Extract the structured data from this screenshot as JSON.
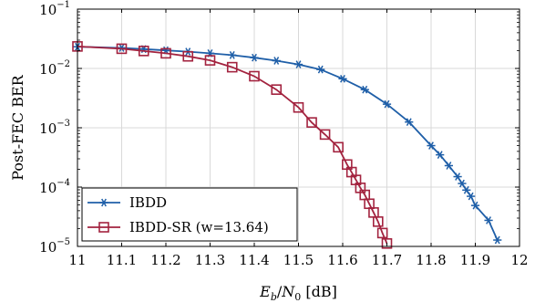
{
  "chart_data": {
    "type": "line",
    "title": "",
    "xlabel": "E_b/N_0 [dB]",
    "xlabel_parts": {
      "e": "E",
      "b": "b",
      "slash": "/",
      "n": "N",
      "zero": "0",
      "unit": " [dB]"
    },
    "ylabel": "Post-FEC BER",
    "xlim": [
      11,
      12
    ],
    "ylim": [
      1e-05,
      0.1
    ],
    "yscale": "log",
    "grid": true,
    "legend_position": "bottom-left",
    "x_ticks": [
      11,
      11.1,
      11.2,
      11.3,
      11.4,
      11.5,
      11.6,
      11.7,
      11.8,
      11.9,
      12
    ],
    "x_tick_labels": [
      "11",
      "11.1",
      "11.2",
      "11.3",
      "11.4",
      "11.5",
      "11.6",
      "11.7",
      "11.8",
      "11.9",
      "12"
    ],
    "y_ticks": [
      1e-05,
      0.0001,
      0.001,
      0.01,
      0.1
    ],
    "y_tick_bases": [
      "10",
      "10",
      "10",
      "10",
      "10"
    ],
    "y_tick_exponents": [
      "−5",
      "−4",
      "−3",
      "−2",
      "−1"
    ],
    "series": [
      {
        "name": "IBDD",
        "color": "#1f5fa8",
        "marker": "asterisk",
        "x": [
          11.0,
          11.1,
          11.15,
          11.2,
          11.25,
          11.3,
          11.35,
          11.4,
          11.45,
          11.5,
          11.55,
          11.6,
          11.65,
          11.7,
          11.75,
          11.8,
          11.82,
          11.84,
          11.86,
          11.87,
          11.88,
          11.89,
          11.9,
          11.93,
          11.95
        ],
        "y": [
          0.0232,
          0.0222,
          0.0212,
          0.0202,
          0.0192,
          0.018,
          0.0168,
          0.0152,
          0.0135,
          0.0117,
          0.0096,
          0.0067,
          0.0044,
          0.0025,
          0.00125,
          0.0005,
          0.00035,
          0.00023,
          0.00015,
          0.000115,
          8.9e-05,
          7e-05,
          4.9e-05,
          2.75e-05,
          1.28e-05
        ]
      },
      {
        "name": "IBDD-SR (w=13.64)",
        "color": "#a3233f",
        "marker": "square",
        "x": [
          11.0,
          11.1,
          11.15,
          11.2,
          11.25,
          11.3,
          11.35,
          11.4,
          11.45,
          11.5,
          11.53,
          11.56,
          11.59,
          11.61,
          11.62,
          11.63,
          11.64,
          11.65,
          11.66,
          11.67,
          11.68,
          11.69,
          11.7
        ],
        "y": [
          0.0235,
          0.0215,
          0.0197,
          0.018,
          0.016,
          0.0137,
          0.0105,
          0.0074,
          0.0044,
          0.0022,
          0.00123,
          0.00077,
          0.00047,
          0.00024,
          0.000179,
          0.000132,
          9.71e-05,
          7.38e-05,
          5.24e-05,
          3.73e-05,
          2.62e-05,
          1.68e-05,
          1.12e-05
        ]
      }
    ]
  }
}
